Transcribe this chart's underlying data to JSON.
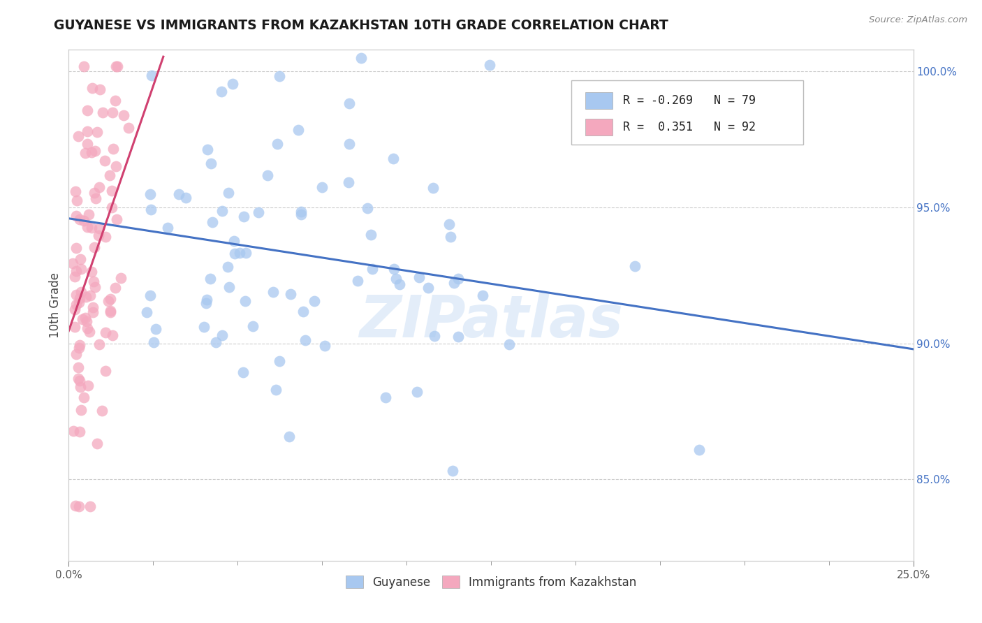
{
  "title": "GUYANESE VS IMMIGRANTS FROM KAZAKHSTAN 10TH GRADE CORRELATION CHART",
  "source_text": "Source: ZipAtlas.com",
  "ylabel": "10th Grade",
  "xlim": [
    0.0,
    0.25
  ],
  "ylim": [
    0.82,
    1.008
  ],
  "xtick_vals": [
    0.0,
    0.025,
    0.05,
    0.075,
    0.1,
    0.125,
    0.15,
    0.175,
    0.2,
    0.225,
    0.25
  ],
  "xtick_major_vals": [
    0.0,
    0.25
  ],
  "xtick_major_labels": [
    "0.0%",
    "25.0%"
  ],
  "ytick_vals": [
    0.85,
    0.9,
    0.95,
    1.0
  ],
  "ytick_labels": [
    "85.0%",
    "90.0%",
    "95.0%",
    "100.0%"
  ],
  "blue_color": "#a8c8f0",
  "pink_color": "#f4a8be",
  "blue_line_color": "#4472c4",
  "pink_line_color": "#d04070",
  "watermark_text": "ZIPatlas",
  "blue_N": 79,
  "pink_N": 92,
  "blue_R": -0.269,
  "pink_R": 0.351
}
